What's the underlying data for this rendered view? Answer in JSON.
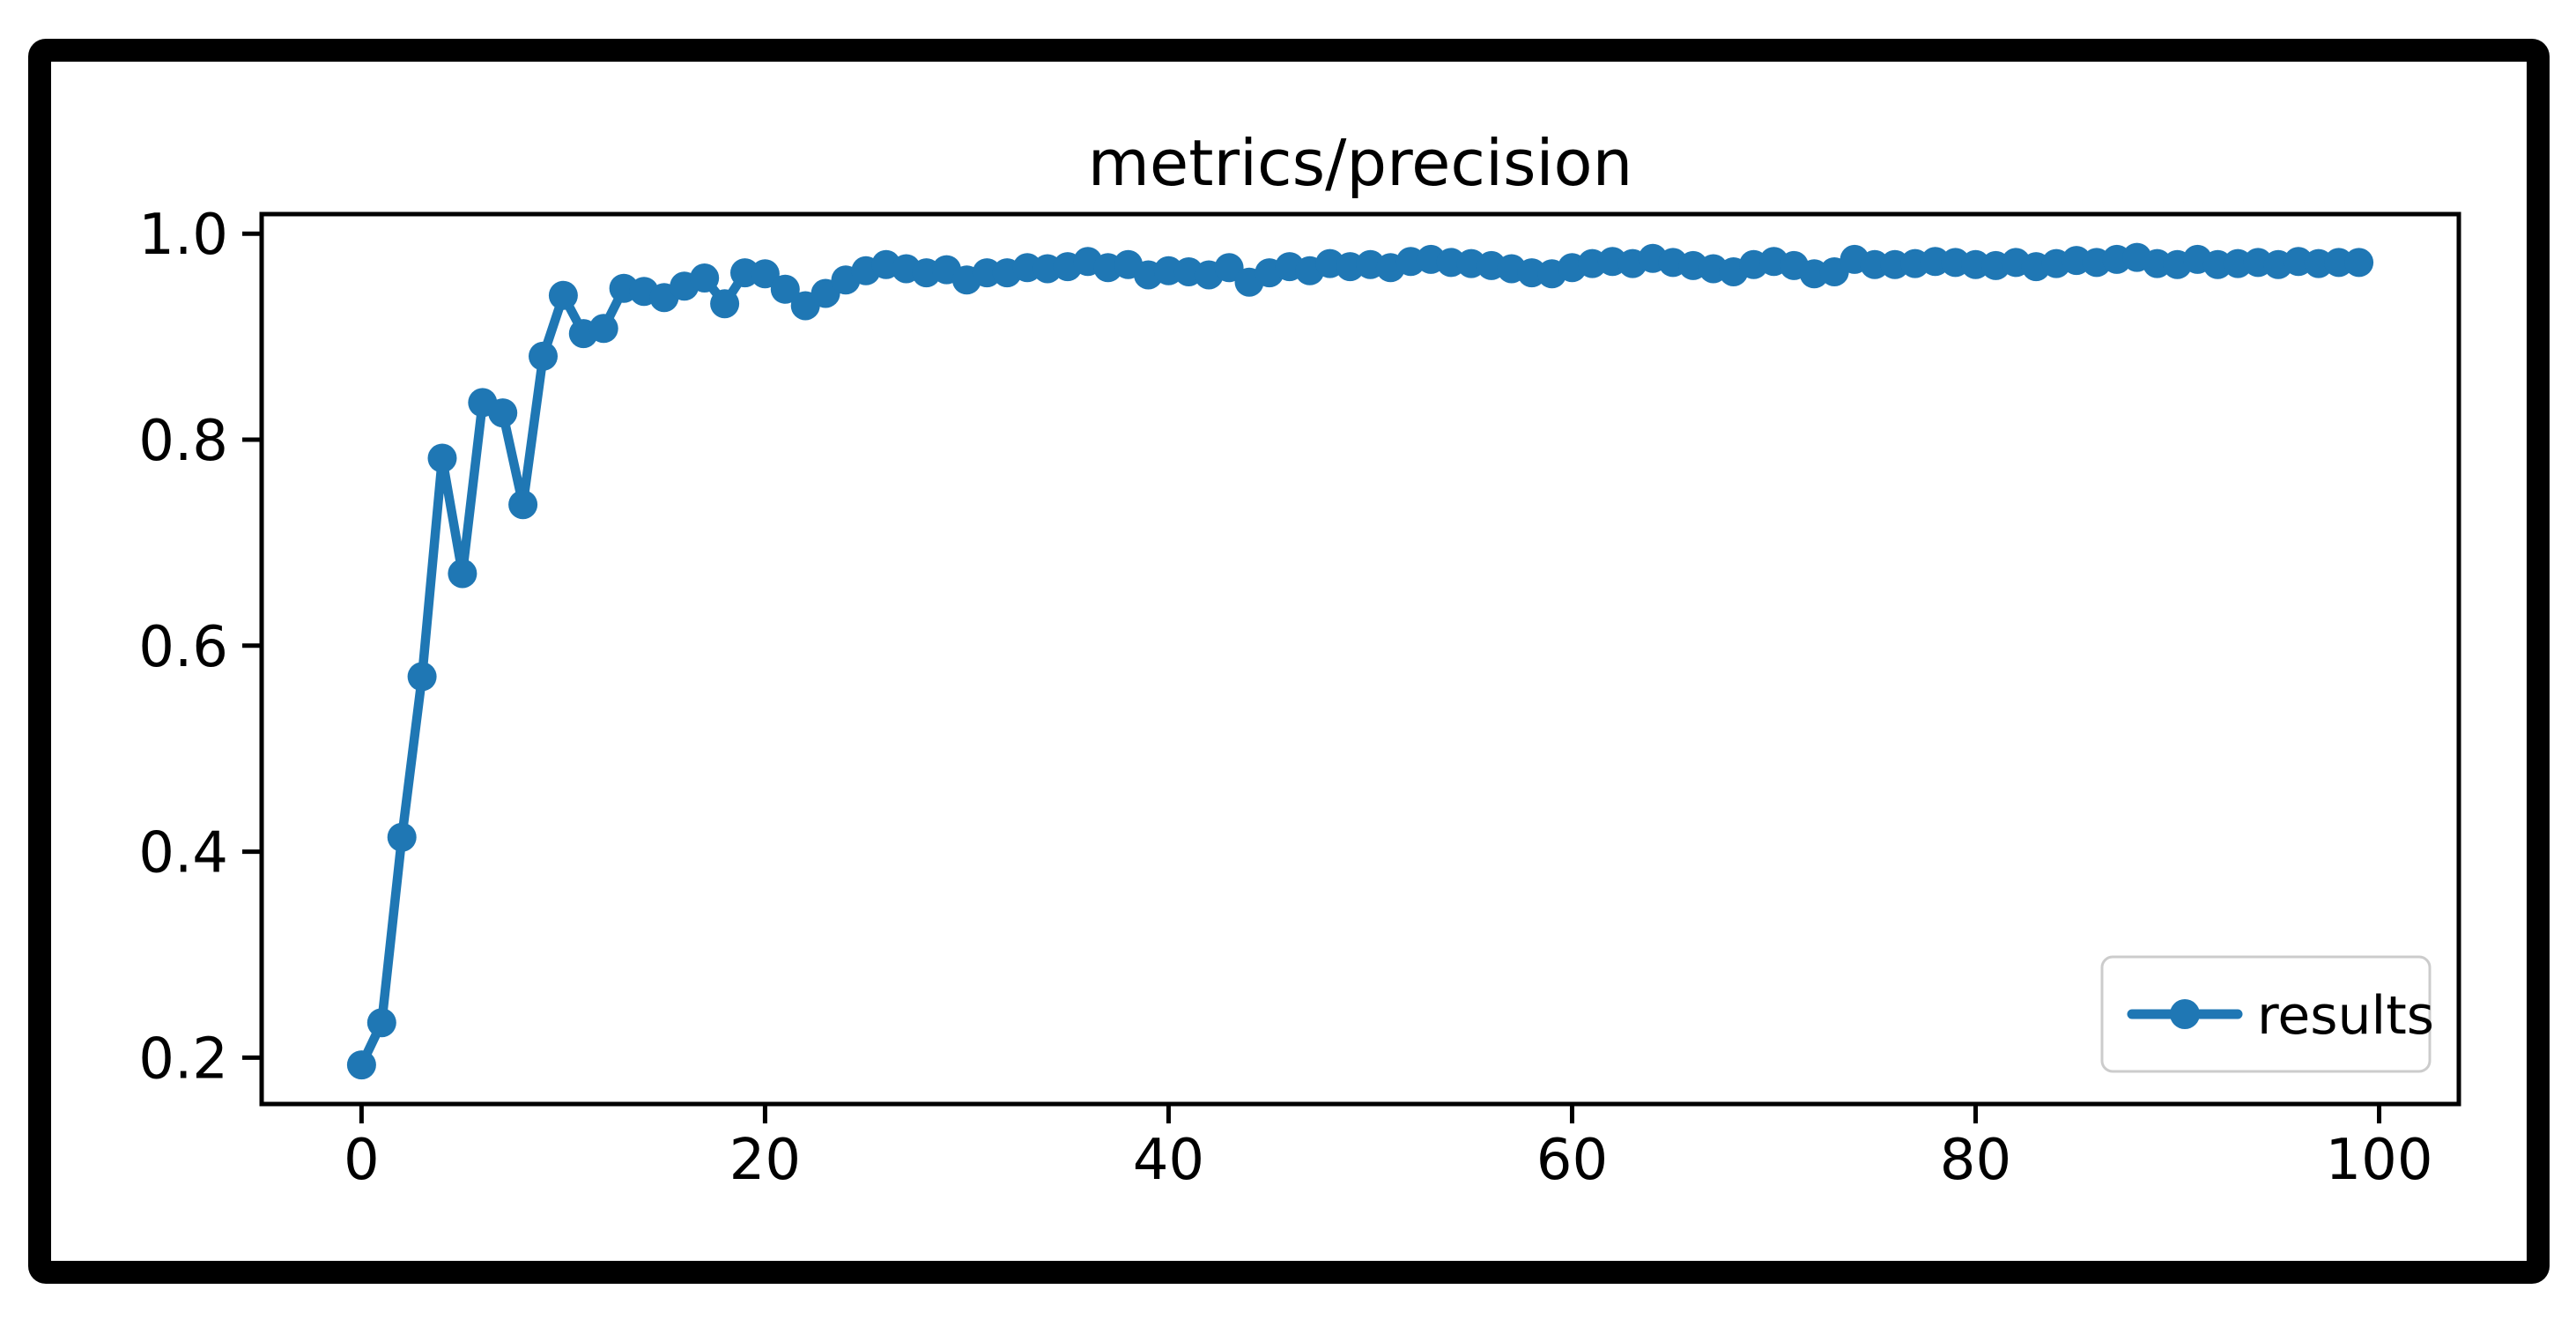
{
  "page": {
    "background": "#ffffff",
    "frame_border_color": "#000000"
  },
  "chart_data": {
    "type": "line",
    "title": "metrics/precision",
    "xlabel": "",
    "ylabel": "",
    "grid": false,
    "xlim": [
      -4.95,
      103.95
    ],
    "ylim": [
      0.155,
      1.019
    ],
    "xticks": [
      {
        "v": 0,
        "label": "0"
      },
      {
        "v": 20,
        "label": "20"
      },
      {
        "v": 40,
        "label": "40"
      },
      {
        "v": 60,
        "label": "60"
      },
      {
        "v": 80,
        "label": "80"
      },
      {
        "v": 100,
        "label": "100"
      }
    ],
    "yticks": [
      {
        "v": 0.2,
        "label": "0.2"
      },
      {
        "v": 0.4,
        "label": "0.4"
      },
      {
        "v": 0.6,
        "label": "0.6"
      },
      {
        "v": 0.8,
        "label": "0.8"
      },
      {
        "v": 1.0,
        "label": "1.0"
      }
    ],
    "legend": {
      "position": "lower right",
      "entries": [
        {
          "label": "results",
          "color": "#1f77b4",
          "marker": "circle"
        }
      ]
    },
    "series": [
      {
        "name": "results",
        "color": "#1f77b4",
        "marker": "circle",
        "x_start": 0,
        "x_step": 1,
        "values": [
          0.193,
          0.234,
          0.414,
          0.57,
          0.782,
          0.67,
          0.836,
          0.826,
          0.737,
          0.881,
          0.94,
          0.903,
          0.908,
          0.947,
          0.944,
          0.938,
          0.949,
          0.957,
          0.932,
          0.962,
          0.961,
          0.946,
          0.93,
          0.942,
          0.955,
          0.964,
          0.97,
          0.966,
          0.962,
          0.965,
          0.955,
          0.962,
          0.962,
          0.967,
          0.966,
          0.968,
          0.973,
          0.967,
          0.97,
          0.96,
          0.964,
          0.963,
          0.96,
          0.967,
          0.953,
          0.962,
          0.968,
          0.964,
          0.971,
          0.968,
          0.97,
          0.967,
          0.973,
          0.975,
          0.972,
          0.971,
          0.969,
          0.966,
          0.962,
          0.961,
          0.967,
          0.971,
          0.973,
          0.971,
          0.976,
          0.972,
          0.969,
          0.966,
          0.963,
          0.97,
          0.973,
          0.969,
          0.961,
          0.963,
          0.975,
          0.97,
          0.97,
          0.971,
          0.973,
          0.972,
          0.97,
          0.969,
          0.972,
          0.968,
          0.971,
          0.974,
          0.972,
          0.975,
          0.977,
          0.971,
          0.97,
          0.975,
          0.97,
          0.971,
          0.972,
          0.97,
          0.973,
          0.971,
          0.972,
          0.972
        ]
      }
    ]
  }
}
